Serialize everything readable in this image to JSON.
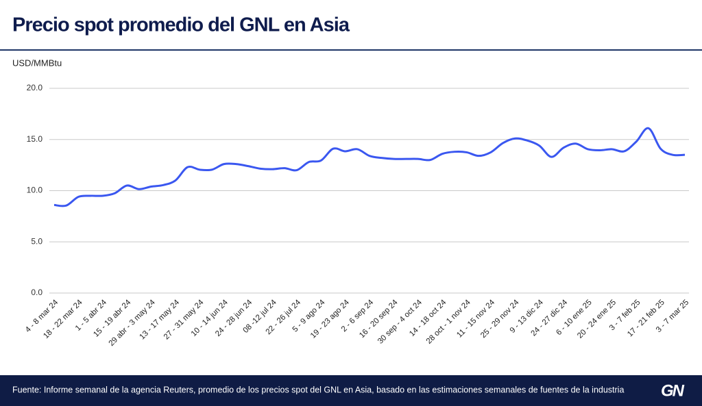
{
  "chart_data": {
    "type": "line",
    "title": "Precio spot promedio del GNL en Asia",
    "y_label": "USD/MMBtu",
    "source": "Fuente: Informe semanal de la agencia Reuters, promedio de los precios spot del GNL en Asia, basado en las estimaciones semanales de fuentes de la industria",
    "logo": "GN",
    "color": "#3a57f0",
    "grid": true,
    "ylim": [
      0,
      20
    ],
    "yticks": [
      {
        "value": 0,
        "label": "0.0"
      },
      {
        "value": 5,
        "label": "5.0"
      },
      {
        "value": 10,
        "label": "10.0"
      },
      {
        "value": 15,
        "label": "15.0"
      },
      {
        "value": 20,
        "label": "20.0"
      }
    ],
    "categories": [
      "4 - 8 mar 24",
      null,
      "18 - 22 mar 24",
      null,
      "1 - 5 abr 24",
      null,
      "15 - 19 abr 24",
      null,
      "29 abr - 3 may 24",
      null,
      "13 - 17 may 24",
      null,
      "27 - 31 may 24",
      null,
      "10 - 14 jun 24",
      null,
      "24 - 28 jun 24",
      null,
      "08 -12 jul 24",
      null,
      "22 - 26 jul 24",
      null,
      "5 - 9 ago 24",
      null,
      "19 - 23 ago 24",
      null,
      "2 - 6 sep 24",
      null,
      "16 - 20 sep 24",
      null,
      "30 sep - 4 oct 24",
      null,
      "14 - 18 oct 24",
      null,
      "28 oct - 1 nov 24",
      null,
      "11 - 15 nov 24",
      null,
      "25 - 29 nov 24",
      null,
      "9 - 13 dic 24",
      null,
      "24 - 27 dic 24",
      null,
      "6 - 10 ene 25",
      null,
      "20 - 24 ene 25",
      null,
      "3 - 7 feb 25",
      null,
      "17 - 21 feb 25",
      null,
      "3 - 7 mar 25"
    ],
    "values": [
      8.6,
      8.55,
      9.4,
      9.5,
      9.5,
      9.75,
      10.5,
      10.15,
      10.4,
      10.55,
      11.0,
      12.3,
      12.05,
      12.05,
      12.6,
      12.6,
      12.4,
      12.15,
      12.1,
      12.2,
      12.0,
      12.8,
      12.95,
      14.1,
      13.85,
      14.05,
      13.4,
      13.2,
      13.1,
      13.1,
      13.1,
      13.0,
      13.6,
      13.8,
      13.75,
      13.4,
      13.75,
      14.65,
      15.1,
      14.9,
      14.4,
      13.3,
      14.2,
      14.6,
      14.05,
      13.95,
      14.05,
      13.85,
      14.8,
      16.1,
      14.1,
      13.5,
      13.5
    ]
  }
}
